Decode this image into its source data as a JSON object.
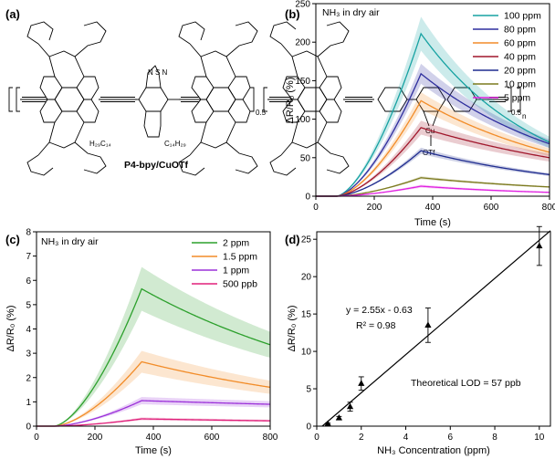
{
  "molecule": {
    "name": "P4-bpy/CuOTf",
    "alkyl_1": "H₂₉C₁₄",
    "alkyl_2": "C₁₄H₂₉",
    "subscript_1": "0.5",
    "subscript_2": "0.5",
    "subscript_n": "n",
    "ring_atoms": "N  S  N",
    "metal": "Cu",
    "counterion": "OTf"
  },
  "chart_data": [
    {
      "panel": "(a)",
      "type": "diagram"
    },
    {
      "panel": "(b)",
      "type": "line",
      "annotation": "NH₃ in dry air",
      "xlabel": "Time (s)",
      "ylabel": "ΔR/R₀ (%)",
      "xlim": [
        0,
        800
      ],
      "ylim": [
        0,
        250
      ],
      "xticks": [
        "0",
        "200",
        "400",
        "600",
        "800"
      ],
      "yticks": [
        "0",
        "50",
        "100",
        "150",
        "200",
        "250"
      ],
      "legend": "top-right",
      "shading": "uncertainty band",
      "series": [
        {
          "name": "100 ppm",
          "color": "#17a2a2",
          "peak": 211,
          "end": 70,
          "band": 22
        },
        {
          "name": "80 ppm",
          "color": "#2f2f9e",
          "peak": 159,
          "end": 68,
          "band": 13
        },
        {
          "name": "60 ppm",
          "color": "#f28c28",
          "peak": 124,
          "end": 57,
          "band": 11
        },
        {
          "name": "40 ppm",
          "color": "#a0162b",
          "peak": 89,
          "end": 50,
          "band": 9
        },
        {
          "name": "20 ppm",
          "color": "#1f2c8f",
          "peak": 59,
          "end": 28,
          "band": 4
        },
        {
          "name": "10 ppm",
          "color": "#7c7a1e",
          "peak": 24,
          "end": 12,
          "band": 2
        },
        {
          "name": "5 ppm",
          "color": "#e020e0",
          "peak": 13,
          "end": 5,
          "band": 2
        }
      ],
      "time_on_start": 70,
      "time_off": 360,
      "time_end": 800
    },
    {
      "panel": "(c)",
      "type": "line",
      "annotation": "NH₃ in dry air",
      "xlabel": "Time (s)",
      "ylabel": "ΔR/R₀ (%)",
      "xlim": [
        0,
        800
      ],
      "ylim": [
        0,
        8
      ],
      "xticks": [
        "0",
        "200",
        "400",
        "600",
        "800"
      ],
      "yticks": [
        "0",
        "1",
        "2",
        "3",
        "4",
        "5",
        "6",
        "7",
        "8"
      ],
      "legend": "top-right",
      "shading": "uncertainty band",
      "series": [
        {
          "name": "2 ppm",
          "color": "#2ca02c",
          "peak": 5.65,
          "end": 3.35,
          "band": 0.9
        },
        {
          "name": "1.5 ppm",
          "color": "#f28c28",
          "peak": 2.65,
          "end": 1.6,
          "band": 0.45
        },
        {
          "name": "1 ppm",
          "color": "#9b30d9",
          "peak": 1.05,
          "end": 0.9,
          "band": 0.15
        },
        {
          "name": "500 ppb",
          "color": "#e0207a",
          "peak": 0.3,
          "end": 0.22,
          "band": 0.06
        }
      ],
      "time_on_start": 60,
      "time_off": 360,
      "time_end": 800
    },
    {
      "panel": "(d)",
      "type": "scatter",
      "xlabel": "NH₃ Concentration (ppm)",
      "ylabel": "ΔR/R₀ (%)",
      "xlim": [
        0,
        10.5
      ],
      "ylim": [
        0,
        26
      ],
      "xticks": [
        "0",
        "2",
        "4",
        "6",
        "8",
        "10"
      ],
      "yticks": [
        "0",
        "5",
        "10",
        "15",
        "20",
        "25"
      ],
      "marker": "triangle",
      "points": [
        {
          "x": 0.5,
          "y": 0.3,
          "err": 0.1
        },
        {
          "x": 1.0,
          "y": 1.1,
          "err": 0.2
        },
        {
          "x": 1.5,
          "y": 2.6,
          "err": 0.6
        },
        {
          "x": 2.0,
          "y": 5.7,
          "err": 0.9
        },
        {
          "x": 5.0,
          "y": 13.5,
          "err": 2.3
        },
        {
          "x": 10.0,
          "y": 24.1,
          "err": 2.6
        }
      ],
      "fit": {
        "slope": 2.55,
        "intercept": -0.63
      },
      "equation": "y = 2.55x - 0.63",
      "r2": "R² = 0.98",
      "lod": "Theoretical LOD = 57 ppb"
    }
  ]
}
